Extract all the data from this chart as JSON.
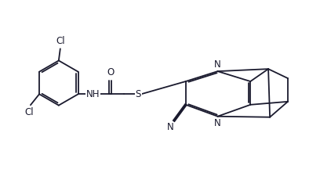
{
  "bg_color": "#ffffff",
  "line_color": "#1a1a2e",
  "line_width": 1.3,
  "font_size_atoms": 8.5,
  "fig_width": 4.08,
  "fig_height": 2.16,
  "dpi": 100,
  "xlim": [
    0,
    10.2
  ],
  "ylim": [
    0,
    5.4
  ]
}
